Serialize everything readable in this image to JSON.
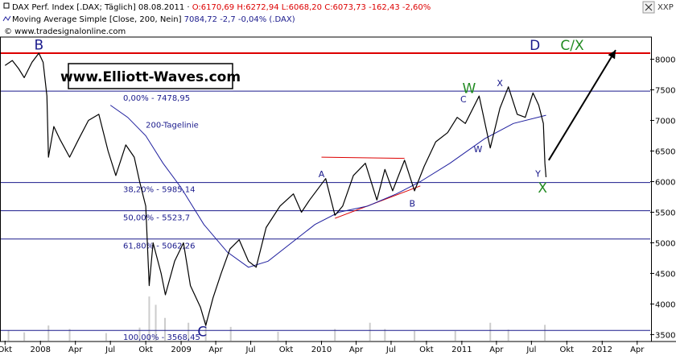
{
  "header": {
    "line1_prefix": "DAX Perf. Index [.DAX; Täglich] 08.08.2011 · ",
    "line1_values": "O:6170,69 H:6272,94 L:6068,20 C:6073,73 -162,43 -2,60%",
    "line2_prefix": "Moving Average Simple [Close, 200, Nein] ",
    "line2_values": "7084,72 -2,7 -0,04% (.DAX)",
    "line3": "© www.tradesignalonline.com",
    "corner_label": "XXP"
  },
  "watermark": "www.Elliott-Waves.com",
  "chart_data": {
    "type": "line",
    "title": "DAX Perf. Index",
    "series": [
      {
        "name": "DAX Perf. Index",
        "points": [
          [
            "2007-10-01",
            7900
          ],
          [
            "2007-10-20",
            7980
          ],
          [
            "2007-11-05",
            7850
          ],
          [
            "2007-11-20",
            7700
          ],
          [
            "2007-12-10",
            7950
          ],
          [
            "2007-12-28",
            8100
          ],
          [
            "2008-01-08",
            7950
          ],
          [
            "2008-01-18",
            7400
          ],
          [
            "2008-01-22",
            6400
          ],
          [
            "2008-02-05",
            6900
          ],
          [
            "2008-02-20",
            6700
          ],
          [
            "2008-03-17",
            6400
          ],
          [
            "2008-04-10",
            6700
          ],
          [
            "2008-05-05",
            7000
          ],
          [
            "2008-06-01",
            7100
          ],
          [
            "2008-06-25",
            6500
          ],
          [
            "2008-07-15",
            6100
          ],
          [
            "2008-08-10",
            6600
          ],
          [
            "2008-09-01",
            6400
          ],
          [
            "2008-09-15",
            6000
          ],
          [
            "2008-10-01",
            5600
          ],
          [
            "2008-10-10",
            4300
          ],
          [
            "2008-10-20",
            5000
          ],
          [
            "2008-11-10",
            4500
          ],
          [
            "2008-11-21",
            4150
          ],
          [
            "2008-12-15",
            4700
          ],
          [
            "2009-01-07",
            5000
          ],
          [
            "2009-01-25",
            4300
          ],
          [
            "2009-02-20",
            3950
          ],
          [
            "2009-03-06",
            3650
          ],
          [
            "2009-03-25",
            4100
          ],
          [
            "2009-04-15",
            4500
          ],
          [
            "2009-05-08",
            4900
          ],
          [
            "2009-06-01",
            5050
          ],
          [
            "2009-06-25",
            4700
          ],
          [
            "2009-07-15",
            4600
          ],
          [
            "2009-08-10",
            5250
          ],
          [
            "2009-09-15",
            5600
          ],
          [
            "2009-10-20",
            5800
          ],
          [
            "2009-11-10",
            5500
          ],
          [
            "2009-12-01",
            5700
          ],
          [
            "2010-01-12",
            6050
          ],
          [
            "2010-02-05",
            5450
          ],
          [
            "2010-02-25",
            5600
          ],
          [
            "2010-03-25",
            6100
          ],
          [
            "2010-04-25",
            6300
          ],
          [
            "2010-05-25",
            5700
          ],
          [
            "2010-06-15",
            6200
          ],
          [
            "2010-07-05",
            5850
          ],
          [
            "2010-08-05",
            6350
          ],
          [
            "2010-08-31",
            5850
          ],
          [
            "2010-09-25",
            6250
          ],
          [
            "2010-10-25",
            6650
          ],
          [
            "2010-11-25",
            6800
          ],
          [
            "2010-12-20",
            7050
          ],
          [
            "2011-01-10",
            6950
          ],
          [
            "2011-02-15",
            7400
          ],
          [
            "2011-03-16",
            6550
          ],
          [
            "2011-04-10",
            7200
          ],
          [
            "2011-05-02",
            7550
          ],
          [
            "2011-05-25",
            7100
          ],
          [
            "2011-06-15",
            7050
          ],
          [
            "2011-07-05",
            7450
          ],
          [
            "2011-07-20",
            7250
          ],
          [
            "2011-08-01",
            6950
          ],
          [
            "2011-08-05",
            6300
          ],
          [
            "2011-08-08",
            6073
          ]
        ]
      },
      {
        "name": "Moving Average Simple [Close, 200, Nein]",
        "points": [
          [
            "2008-07-01",
            7250
          ],
          [
            "2008-08-15",
            7050
          ],
          [
            "2008-10-01",
            6750
          ],
          [
            "2008-11-15",
            6300
          ],
          [
            "2009-01-01",
            5900
          ],
          [
            "2009-03-01",
            5300
          ],
          [
            "2009-05-01",
            4850
          ],
          [
            "2009-06-25",
            4600
          ],
          [
            "2009-08-15",
            4700
          ],
          [
            "2009-10-15",
            5000
          ],
          [
            "2009-12-15",
            5300
          ],
          [
            "2010-02-15",
            5500
          ],
          [
            "2010-05-01",
            5600
          ],
          [
            "2010-07-15",
            5800
          ],
          [
            "2010-09-15",
            6000
          ],
          [
            "2010-12-01",
            6300
          ],
          [
            "2011-03-01",
            6700
          ],
          [
            "2011-05-15",
            6950
          ],
          [
            "2011-08-08",
            7085
          ]
        ]
      }
    ],
    "xlim": [
      "2007-09-20",
      "2012-05-05"
    ],
    "ylim": [
      3400,
      8350
    ],
    "y_ticks": [
      3500,
      4000,
      4500,
      5000,
      5500,
      6000,
      6500,
      7000,
      7500,
      8000
    ],
    "x_ticks": [
      {
        "d": "2007-10-01",
        "l": "Okt"
      },
      {
        "d": "2008-01-01",
        "l": "2008"
      },
      {
        "d": "2008-04-01",
        "l": "Apr"
      },
      {
        "d": "2008-07-01",
        "l": "Jul"
      },
      {
        "d": "2008-10-01",
        "l": "Okt"
      },
      {
        "d": "2009-01-01",
        "l": "2009"
      },
      {
        "d": "2009-04-01",
        "l": "Apr"
      },
      {
        "d": "2009-07-01",
        "l": "Jul"
      },
      {
        "d": "2009-10-01",
        "l": "Okt"
      },
      {
        "d": "2010-01-01",
        "l": "2010"
      },
      {
        "d": "2010-04-01",
        "l": "Apr"
      },
      {
        "d": "2010-07-01",
        "l": "Jul"
      },
      {
        "d": "2010-10-01",
        "l": "Okt"
      },
      {
        "d": "2011-01-01",
        "l": "2011"
      },
      {
        "d": "2011-04-01",
        "l": "Apr"
      },
      {
        "d": "2011-07-01",
        "l": "Jul"
      },
      {
        "d": "2011-10-01",
        "l": "Okt"
      },
      {
        "d": "2012-01-01",
        "l": "2012"
      },
      {
        "d": "2012-04-01",
        "l": "Apr"
      }
    ],
    "volume": [
      [
        "2007-10-10",
        150
      ],
      [
        "2007-11-20",
        120
      ],
      [
        "2008-01-22",
        220
      ],
      [
        "2008-03-17",
        170
      ],
      [
        "2008-06-20",
        110
      ],
      [
        "2008-09-15",
        190
      ],
      [
        "2008-10-10",
        640
      ],
      [
        "2008-10-27",
        520
      ],
      [
        "2008-11-20",
        330
      ],
      [
        "2009-01-20",
        260
      ],
      [
        "2009-03-06",
        300
      ],
      [
        "2009-05-10",
        200
      ],
      [
        "2009-09-10",
        130
      ],
      [
        "2010-02-05",
        170
      ],
      [
        "2010-05-07",
        260
      ],
      [
        "2010-06-15",
        170
      ],
      [
        "2010-08-31",
        140
      ],
      [
        "2010-12-15",
        140
      ],
      [
        "2011-03-16",
        260
      ],
      [
        "2011-05-02",
        160
      ],
      [
        "2011-08-05",
        230
      ]
    ],
    "resistance": {
      "value": 8100,
      "color": "#dd0000"
    },
    "fib_levels": [
      {
        "value": 7478.95,
        "label": "0,00% - 7478,95"
      },
      {
        "value": 5985.14,
        "label": "38,20% - 5985,14"
      },
      {
        "value": 5523.7,
        "label": "50,00% - 5523,7"
      },
      {
        "value": 5062.26,
        "label": "61,80% - 5062,26"
      },
      {
        "value": 3568.45,
        "label": "100,00% - 3568,45"
      }
    ],
    "ma_label": "200-Tagelinie",
    "channel": [
      {
        "from": [
          "2010-01-01",
          6400
        ],
        "to": [
          "2010-08-05",
          6380
        ]
      },
      {
        "from": [
          "2010-02-05",
          5400
        ],
        "to": [
          "2010-09-15",
          5930
        ]
      }
    ],
    "arrow": {
      "from": [
        "2011-08-15",
        6350
      ],
      "to": [
        "2012-02-05",
        8150
      ]
    },
    "wave_labels": [
      {
        "text": "B",
        "at": [
          "2007-12-28",
          8160
        ],
        "color": "#1a1a8c",
        "size": "big"
      },
      {
        "text": "C",
        "at": [
          "2009-02-25",
          3470
        ],
        "color": "#1a1a8c",
        "size": "big"
      },
      {
        "text": "D",
        "at": [
          "2011-07-10",
          8150
        ],
        "color": "#1a1a8c",
        "size": "big"
      },
      {
        "text": "C/X",
        "at": [
          "2011-10-15",
          8150
        ],
        "color": "#228b22",
        "size": "big"
      },
      {
        "text": "W",
        "at": [
          "2011-01-20",
          7450
        ],
        "color": "#228b22",
        "size": "big"
      },
      {
        "text": "X",
        "at": [
          "2011-07-30",
          5820
        ],
        "color": "#228b22",
        "size": "big"
      },
      {
        "text": "A",
        "at": [
          "2010-01-01",
          6070
        ],
        "color": "#1a1a8c",
        "size": "small"
      },
      {
        "text": "B",
        "at": [
          "2010-08-25",
          5590
        ],
        "color": "#1a1a8c",
        "size": "small"
      },
      {
        "text": "C",
        "at": [
          "2011-01-05",
          7300
        ],
        "color": "#1a1a8c",
        "size": "small"
      },
      {
        "text": "X",
        "at": [
          "2011-04-10",
          7560
        ],
        "color": "#1a1a8c",
        "size": "small"
      },
      {
        "text": "W",
        "at": [
          "2011-02-12",
          6480
        ],
        "color": "#1a1a8c",
        "size": "small"
      },
      {
        "text": "Y",
        "at": [
          "2011-07-18",
          6080
        ],
        "color": "#1a1a8c",
        "size": "small"
      }
    ],
    "colors": {
      "price": "#000000",
      "ma": "#1f1f9e",
      "level": "#1a1a8c",
      "channel": "#dd0000",
      "volume": "#cccccc"
    }
  }
}
